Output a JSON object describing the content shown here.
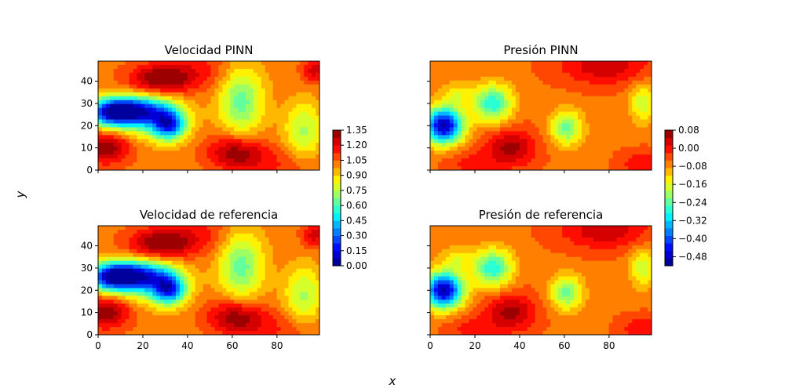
{
  "figure": {
    "xlabel": "x",
    "ylabel": "y"
  },
  "chart_data": [
    {
      "type": "heatmap",
      "id": "vel_pinn",
      "title": "Velocidad PINN",
      "field": "velocity",
      "xlim": [
        0,
        99
      ],
      "ylim": [
        0,
        49
      ],
      "xticks": [
        "0",
        "20",
        "40",
        "60",
        "80"
      ],
      "yticks": [
        "0",
        "10",
        "20",
        "30",
        "40"
      ],
      "show_xticklabels": false,
      "show_yticklabels": true,
      "colormap": "jet",
      "vmin": 0.0,
      "vmax": 1.35
    },
    {
      "type": "heatmap",
      "id": "pres_pinn",
      "title": "Presión PINN",
      "field": "pressure",
      "xlim": [
        0,
        99
      ],
      "ylim": [
        0,
        49
      ],
      "xticks": [
        "0",
        "20",
        "40",
        "60",
        "80"
      ],
      "yticks": [
        "0",
        "10",
        "20",
        "30",
        "40"
      ],
      "show_xticklabels": false,
      "show_yticklabels": false,
      "colormap": "jet",
      "vmin": -0.52,
      "vmax": 0.08
    },
    {
      "type": "heatmap",
      "id": "vel_ref",
      "title": "Velocidad de referencia",
      "field": "velocity",
      "xlim": [
        0,
        99
      ],
      "ylim": [
        0,
        49
      ],
      "xticks": [
        "0",
        "20",
        "40",
        "60",
        "80"
      ],
      "yticks": [
        "0",
        "10",
        "20",
        "30",
        "40"
      ],
      "show_xticklabels": true,
      "show_yticklabels": true,
      "colormap": "jet",
      "vmin": 0.0,
      "vmax": 1.35
    },
    {
      "type": "heatmap",
      "id": "pres_ref",
      "title": "Presión de referencia",
      "field": "pressure",
      "xlim": [
        0,
        99
      ],
      "ylim": [
        0,
        49
      ],
      "xticks": [
        "0",
        "20",
        "40",
        "60",
        "80"
      ],
      "yticks": [
        "0",
        "10",
        "20",
        "30",
        "40"
      ],
      "show_xticklabels": true,
      "show_yticklabels": false,
      "colormap": "jet",
      "vmin": -0.52,
      "vmax": 0.08
    }
  ],
  "colorbars": [
    {
      "id": "velocity",
      "vmin": 0.0,
      "vmax": 1.35,
      "tick_values": [
        0.0,
        0.15,
        0.3,
        0.45,
        0.6,
        0.75,
        0.9,
        1.05,
        1.2,
        1.35
      ],
      "tick_labels": [
        "0.00",
        "0.15",
        "0.30",
        "0.45",
        "0.60",
        "0.75",
        "0.90",
        "1.05",
        "1.20",
        "1.35"
      ]
    },
    {
      "id": "pressure",
      "vmin": -0.52,
      "vmax": 0.08,
      "tick_values": [
        -0.48,
        -0.4,
        -0.32,
        -0.24,
        -0.16,
        -0.08,
        0.0,
        0.08
      ],
      "tick_labels": [
        "−0.48",
        "−0.40",
        "−0.32",
        "−0.24",
        "−0.16",
        "−0.08",
        "0.00",
        "0.08"
      ]
    }
  ]
}
